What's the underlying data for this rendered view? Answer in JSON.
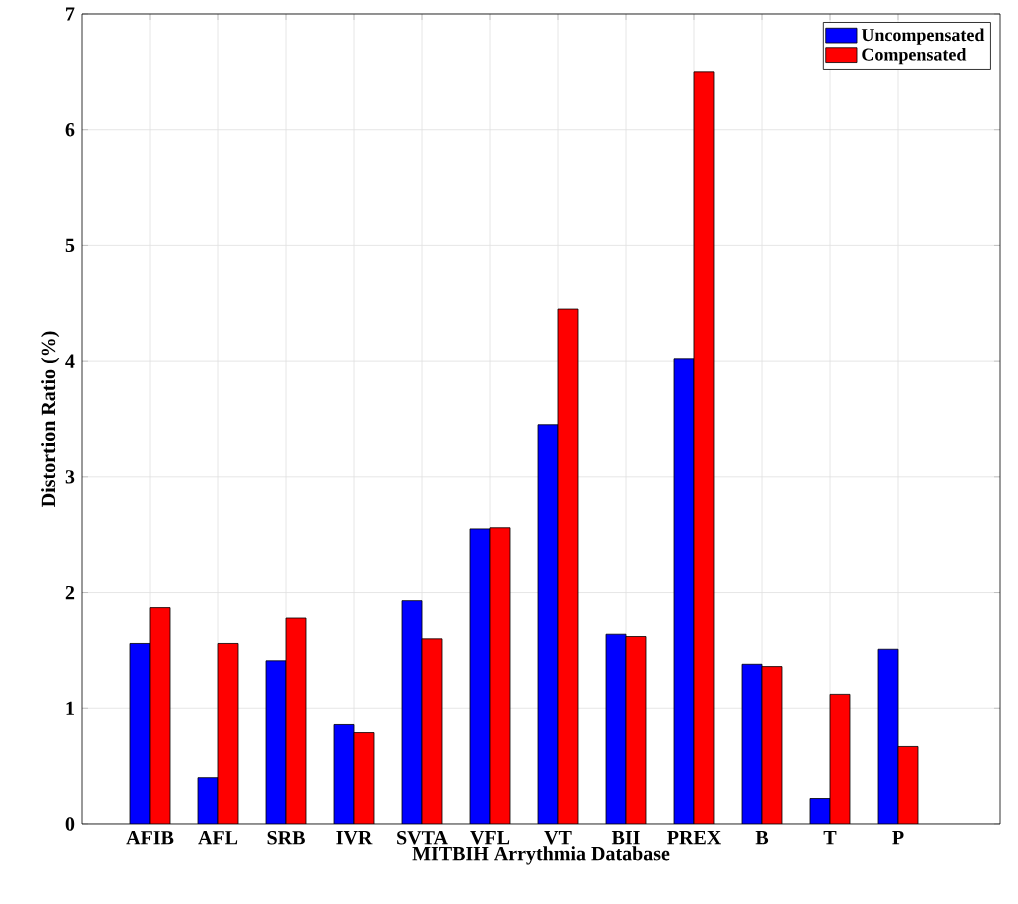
{
  "chart_data": {
    "type": "bar",
    "xlabel": "MITBIH Arrythmia Database",
    "ylabel": "Distortion Ratio (%)",
    "categories": [
      "AFIB",
      "AFL",
      "SRB",
      "IVR",
      "SVTA",
      "VFL",
      "VT",
      "BII",
      "PREX",
      "B",
      "T",
      "P"
    ],
    "series": [
      {
        "name": "Uncompensated",
        "color": "#0000ff",
        "values": [
          1.56,
          0.4,
          1.41,
          0.86,
          1.93,
          2.55,
          3.45,
          1.64,
          4.02,
          1.38,
          0.22,
          1.51
        ]
      },
      {
        "name": "Compensated",
        "color": "#ff0000",
        "values": [
          1.87,
          1.56,
          1.78,
          0.79,
          1.6,
          2.56,
          4.45,
          1.62,
          6.5,
          1.36,
          1.12,
          0.67
        ]
      }
    ],
    "ylim": [
      0,
      7
    ],
    "yticks": [
      0,
      1,
      2,
      3,
      4,
      5,
      6,
      7
    ],
    "grid": true,
    "legend": "top right"
  }
}
